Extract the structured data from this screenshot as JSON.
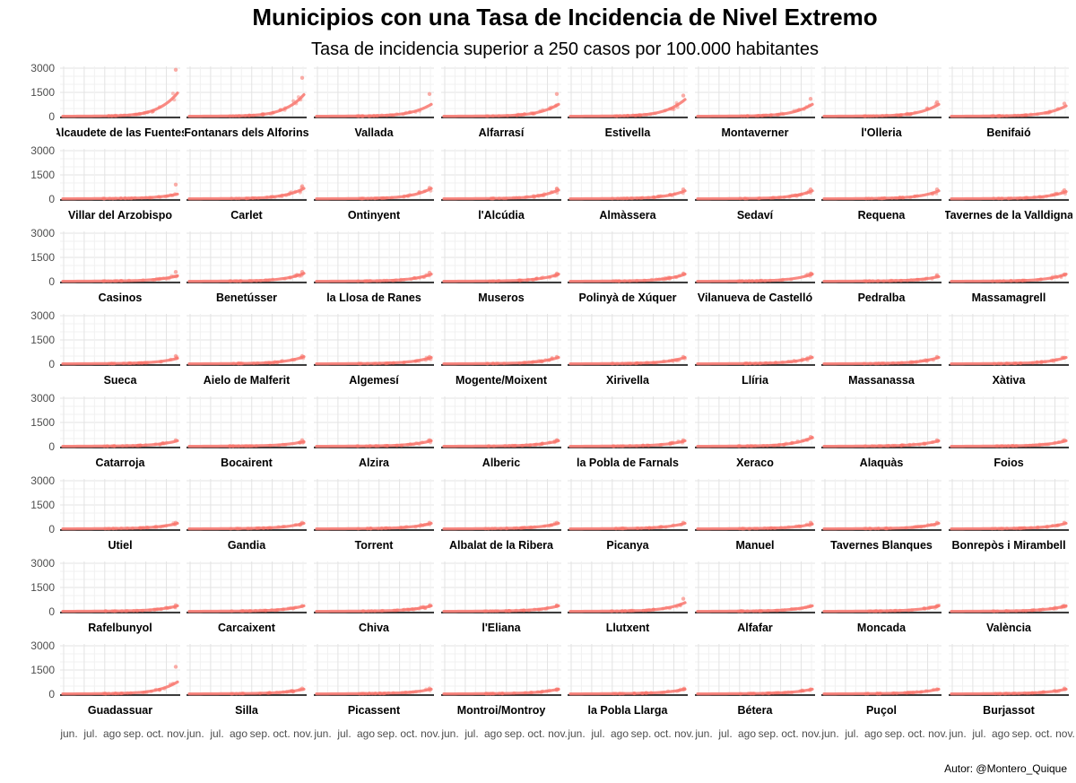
{
  "chart_data": {
    "type": "scatter",
    "title": "Municipios con una Tasa de Incidencia de Nivel Extremo",
    "subtitle": "Tasa de incidencia superior a 250 casos por 100.000 habitantes",
    "caption": "Autor: @Montero_Quique",
    "y_ticks": [
      "0",
      "1500",
      "3000"
    ],
    "ylim": [
      0,
      3000
    ],
    "x_ticks": [
      "jun.",
      "jul.",
      "ago",
      "sep.",
      "oct.",
      "nov."
    ],
    "series_color": "#f8766d",
    "panels": [
      {
        "name": "Villar del Arzobispo",
        "first_label": "Alcaudete de las Fuentes",
        "peak": 1400,
        "outlier_max": 2900
      },
      {
        "name": "Fontanars dels Alforins",
        "peak": 1300,
        "outlier_max": 2400
      },
      {
        "name": "Vallada",
        "peak": 700,
        "outlier_max": 1400
      },
      {
        "name": "Alfarrasí",
        "peak": 700,
        "outlier_max": 1400
      },
      {
        "name": "Estivella",
        "peak": 1000,
        "outlier_max": 1300
      },
      {
        "name": "Montaverner",
        "peak": 700,
        "outlier_max": 1100
      },
      {
        "name": "l'Olleria",
        "peak": 700,
        "outlier_max": 900
      },
      {
        "name": "Benifaió",
        "peak": 600,
        "outlier_max": 800
      },
      {
        "name": "Villar del Arzobispo",
        "peak": 250,
        "outlier_max": 900
      },
      {
        "name": "Carlet",
        "peak": 600,
        "outlier_max": 800
      },
      {
        "name": "Ontinyent",
        "peak": 600,
        "outlier_max": 700
      },
      {
        "name": "l'Alcúdia",
        "peak": 500,
        "outlier_max": 650
      },
      {
        "name": "Almàssera",
        "peak": 450,
        "outlier_max": 600
      },
      {
        "name": "Sedaví",
        "peak": 450,
        "outlier_max": 600
      },
      {
        "name": "Requena",
        "peak": 450,
        "outlier_max": 600
      },
      {
        "name": "Tavernes de la Valldigna",
        "peak": 400,
        "outlier_max": 550
      },
      {
        "name": "Casinos",
        "peak": 300,
        "outlier_max": 600
      },
      {
        "name": "Benetússer",
        "peak": 450,
        "outlier_max": 600
      },
      {
        "name": "la Llosa de Ranes",
        "peak": 400,
        "outlier_max": 550
      },
      {
        "name": "Museros",
        "peak": 400,
        "outlier_max": 500
      },
      {
        "name": "Polinyà de Xúquer",
        "peak": 400,
        "outlier_max": 500
      },
      {
        "name": "Vilanueva de Castelló",
        "peak": 400,
        "outlier_max": 500
      },
      {
        "name": "Pedralba",
        "peak": 250,
        "outlier_max": 400
      },
      {
        "name": "Massamagrell",
        "peak": 400,
        "outlier_max": 450
      },
      {
        "name": "Sueca",
        "peak": 300,
        "outlier_max": 500
      },
      {
        "name": "Aielo de Malferit",
        "peak": 400,
        "outlier_max": 500
      },
      {
        "name": "Algemesí",
        "peak": 350,
        "outlier_max": 450
      },
      {
        "name": "Mogente/Moixent",
        "peak": 350,
        "outlier_max": 450
      },
      {
        "name": "Xirivella",
        "peak": 350,
        "outlier_max": 450
      },
      {
        "name": "Llíria",
        "peak": 350,
        "outlier_max": 450
      },
      {
        "name": "Massanassa",
        "peak": 350,
        "outlier_max": 450
      },
      {
        "name": "Xàtiva",
        "peak": 350,
        "outlier_max": 400
      },
      {
        "name": "Catarroja",
        "peak": 300,
        "outlier_max": 400
      },
      {
        "name": "Bocairent",
        "peak": 250,
        "outlier_max": 400
      },
      {
        "name": "Alzira",
        "peak": 300,
        "outlier_max": 400
      },
      {
        "name": "Alberic",
        "peak": 300,
        "outlier_max": 400
      },
      {
        "name": "la Pobla de Farnals",
        "peak": 300,
        "outlier_max": 400
      },
      {
        "name": "Xeraco",
        "peak": 500,
        "outlier_max": 600
      },
      {
        "name": "Alaquàs",
        "peak": 300,
        "outlier_max": 400
      },
      {
        "name": "Foios",
        "peak": 300,
        "outlier_max": 400
      },
      {
        "name": "Utiel",
        "peak": 300,
        "outlier_max": 400
      },
      {
        "name": "Gandia",
        "peak": 300,
        "outlier_max": 400
      },
      {
        "name": "Torrent",
        "peak": 300,
        "outlier_max": 400
      },
      {
        "name": "Albalat de la Ribera",
        "peak": 300,
        "outlier_max": 400
      },
      {
        "name": "Picanya",
        "peak": 300,
        "outlier_max": 400
      },
      {
        "name": "Manuel",
        "peak": 250,
        "outlier_max": 400
      },
      {
        "name": "Tavernes Blanques",
        "peak": 300,
        "outlier_max": 400
      },
      {
        "name": "Bonrepòs i Mirambell",
        "peak": 300,
        "outlier_max": 400
      },
      {
        "name": "Rafelbunyol",
        "peak": 300,
        "outlier_max": 400
      },
      {
        "name": "Carcaixent",
        "peak": 300,
        "outlier_max": 350
      },
      {
        "name": "Chiva",
        "peak": 300,
        "outlier_max": 350
      },
      {
        "name": "l'Eliana",
        "peak": 300,
        "outlier_max": 350
      },
      {
        "name": "Llutxent",
        "peak": 500,
        "outlier_max": 800
      },
      {
        "name": "Alfafar",
        "peak": 300,
        "outlier_max": 350
      },
      {
        "name": "Moncada",
        "peak": 300,
        "outlier_max": 350
      },
      {
        "name": "València",
        "peak": 300,
        "outlier_max": 350
      },
      {
        "name": "Guadassuar",
        "peak": 700,
        "outlier_max": 1700
      },
      {
        "name": "Silla",
        "peak": 250,
        "outlier_max": 350
      },
      {
        "name": "Picassent",
        "peak": 250,
        "outlier_max": 350
      },
      {
        "name": "Montroi/Montroy",
        "peak": 250,
        "outlier_max": 300
      },
      {
        "name": "la Pobla Llarga",
        "peak": 250,
        "outlier_max": 300
      },
      {
        "name": "Bétera",
        "peak": 250,
        "outlier_max": 300
      },
      {
        "name": "Puçol",
        "peak": 250,
        "outlier_max": 300
      },
      {
        "name": "Burjassot",
        "peak": 250,
        "outlier_max": 350
      }
    ]
  }
}
